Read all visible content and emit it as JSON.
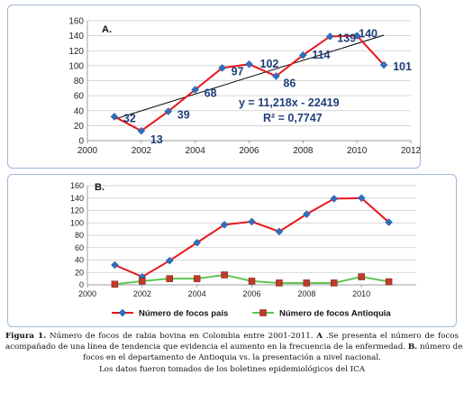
{
  "chart_data": [
    {
      "type": "line",
      "panel_label": "A.",
      "x": [
        2001,
        2002,
        2003,
        2004,
        2005,
        2006,
        2007,
        2008,
        2009,
        2010,
        2011
      ],
      "series": [
        {
          "values": [
            32,
            13,
            39,
            68,
            97,
            102,
            86,
            114,
            139,
            140,
            101
          ],
          "color": "#e8151b",
          "marker": "diamond",
          "marker_color": "#2e6fc0"
        }
      ],
      "data_labels": [
        "32",
        "13",
        "39",
        "68",
        "97",
        "102",
        "86",
        "114",
        "139",
        "140",
        "101"
      ],
      "trendline": {
        "equation": "y = 11,218x - 22419",
        "r_squared": "R² = 0,7747",
        "color": "#000000"
      },
      "xlim": [
        2000,
        2012
      ],
      "ylim": [
        0,
        160
      ],
      "x_ticks": [
        "2000",
        "2002",
        "2004",
        "2006",
        "2008",
        "2010",
        "2012"
      ],
      "y_ticks": [
        "0",
        "20",
        "40",
        "60",
        "80",
        "100",
        "120",
        "140",
        "160"
      ],
      "grid": true
    },
    {
      "type": "line",
      "panel_label": "B.",
      "x": [
        2001,
        2002,
        2003,
        2004,
        2005,
        2006,
        2007,
        2008,
        2009,
        2010,
        2011
      ],
      "series": [
        {
          "name": "Número de focos país",
          "values": [
            32,
            13,
            39,
            68,
            97,
            102,
            86,
            114,
            139,
            140,
            101
          ],
          "color": "#e8151b",
          "marker": "diamond",
          "marker_color": "#2e6fc0"
        },
        {
          "name": "Número de focos Antioquia",
          "values": [
            1,
            6,
            10,
            10,
            16,
            6,
            3,
            3,
            3,
            13,
            5
          ],
          "color": "#5ec452",
          "marker": "square",
          "marker_color": "#c1392b"
        }
      ],
      "xlim": [
        2000,
        2012
      ],
      "ylim": [
        0,
        160
      ],
      "x_ticks": [
        "2000",
        "2002",
        "2004",
        "2006",
        "2008",
        "2010"
      ],
      "y_ticks": [
        "0",
        "20",
        "40",
        "60",
        "80",
        "100",
        "120",
        "140",
        "160"
      ],
      "legend": "bottom",
      "grid": true
    }
  ],
  "caption": {
    "fig_label": "Figura 1.",
    "line1": " Número de focos de rabia bovina en Colombia entre 2001-2011. ",
    "ref_a": "A",
    "line1_end": " .Se presenta el número de focos",
    "line2_start": "acompañado de una línea de tendencia que evidencia el aumento en la frecuencia de la enfermedad. ",
    "ref_b": "B.",
    "line2_end": " número de",
    "line3": "focos en el departamento de Antioquia vs.  la presentación a nivel nacional.",
    "line4": "Los datos fueron tomados de los boletines epidemiológicos del ICA"
  }
}
